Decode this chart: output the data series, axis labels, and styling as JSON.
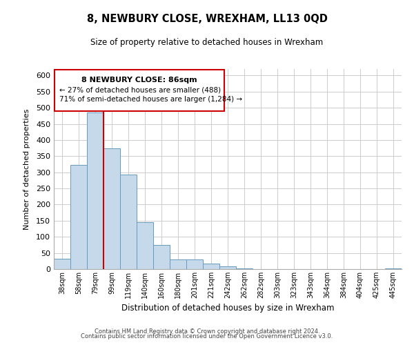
{
  "title": "8, NEWBURY CLOSE, WREXHAM, LL13 0QD",
  "subtitle": "Size of property relative to detached houses in Wrexham",
  "xlabel": "Distribution of detached houses by size in Wrexham",
  "ylabel": "Number of detached properties",
  "bar_labels": [
    "38sqm",
    "58sqm",
    "79sqm",
    "99sqm",
    "119sqm",
    "140sqm",
    "160sqm",
    "180sqm",
    "201sqm",
    "221sqm",
    "242sqm",
    "262sqm",
    "282sqm",
    "303sqm",
    "323sqm",
    "343sqm",
    "364sqm",
    "384sqm",
    "404sqm",
    "425sqm",
    "445sqm"
  ],
  "bar_values": [
    32,
    322,
    485,
    375,
    292,
    145,
    75,
    31,
    29,
    17,
    8,
    2,
    1,
    0,
    0,
    0,
    0,
    0,
    0,
    0,
    2
  ],
  "bar_color": "#c5d9ea",
  "bar_edge_color": "#6699bb",
  "vline_x_idx": 2,
  "vline_color": "#cc0000",
  "ylim": [
    0,
    620
  ],
  "yticks": [
    0,
    50,
    100,
    150,
    200,
    250,
    300,
    350,
    400,
    450,
    500,
    550,
    600
  ],
  "annotation_title": "8 NEWBURY CLOSE: 86sqm",
  "annotation_line1": "← 27% of detached houses are smaller (488)",
  "annotation_line2": "71% of semi-detached houses are larger (1,284) →",
  "footnote1": "Contains HM Land Registry data © Crown copyright and database right 2024.",
  "footnote2": "Contains public sector information licensed under the Open Government Licence v3.0.",
  "grid_color": "#cccccc",
  "background_color": "#ffffff",
  "fig_width": 6.0,
  "fig_height": 5.0,
  "fig_dpi": 100
}
